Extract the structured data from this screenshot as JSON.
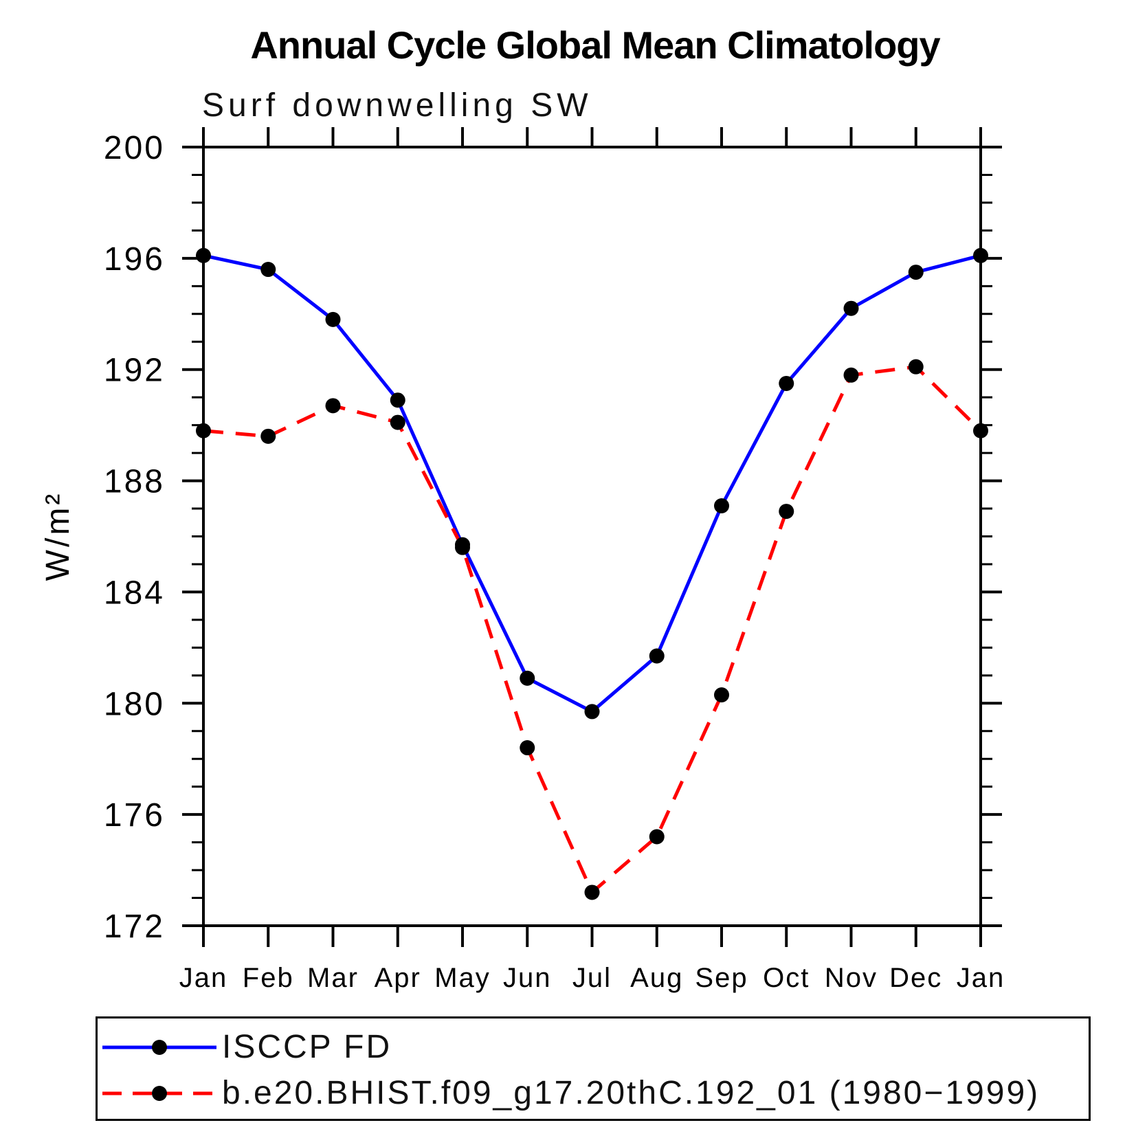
{
  "title": "Annual Cycle Global Mean Climatology",
  "chart_data": {
    "type": "line",
    "title": "Annual Cycle Global Mean Climatology",
    "subtitle": "Surf downwelling SW",
    "ylabel": "W/m²",
    "xlabel": "",
    "ylim": [
      172,
      200
    ],
    "y_major_ticks": [
      200,
      196,
      192,
      188,
      184,
      180,
      176,
      172
    ],
    "y_minor_step": 1,
    "grid": false,
    "legend_position": "bottom-left-box",
    "x_tick_labels": [
      "Jan",
      "Feb",
      "Mar",
      "Apr",
      "May",
      "Jun",
      "Jul",
      "Aug",
      "Sep",
      "Oct",
      "Nov",
      "Dec",
      "Jan"
    ],
    "series": [
      {
        "name": "ISCCP FD",
        "line_color": "#0000ff",
        "line_style": "solid",
        "marker": "filled-circle",
        "marker_color": "#000000",
        "values": [
          196.1,
          195.6,
          193.8,
          190.9,
          185.7,
          180.9,
          179.7,
          181.7,
          187.1,
          191.5,
          194.2,
          195.5,
          196.1
        ]
      },
      {
        "name": "b.e20.BHIST.f09_g17.20thC.192_01 (1980−1999)",
        "line_color": "#ff0000",
        "line_style": "dashed",
        "marker": "filled-circle",
        "marker_color": "#000000",
        "values": [
          189.8,
          189.6,
          190.7,
          190.1,
          185.6,
          178.4,
          173.2,
          175.2,
          180.3,
          186.9,
          191.8,
          192.1,
          189.8
        ]
      }
    ],
    "axis_color": "#000000",
    "text_color": "#000000"
  }
}
